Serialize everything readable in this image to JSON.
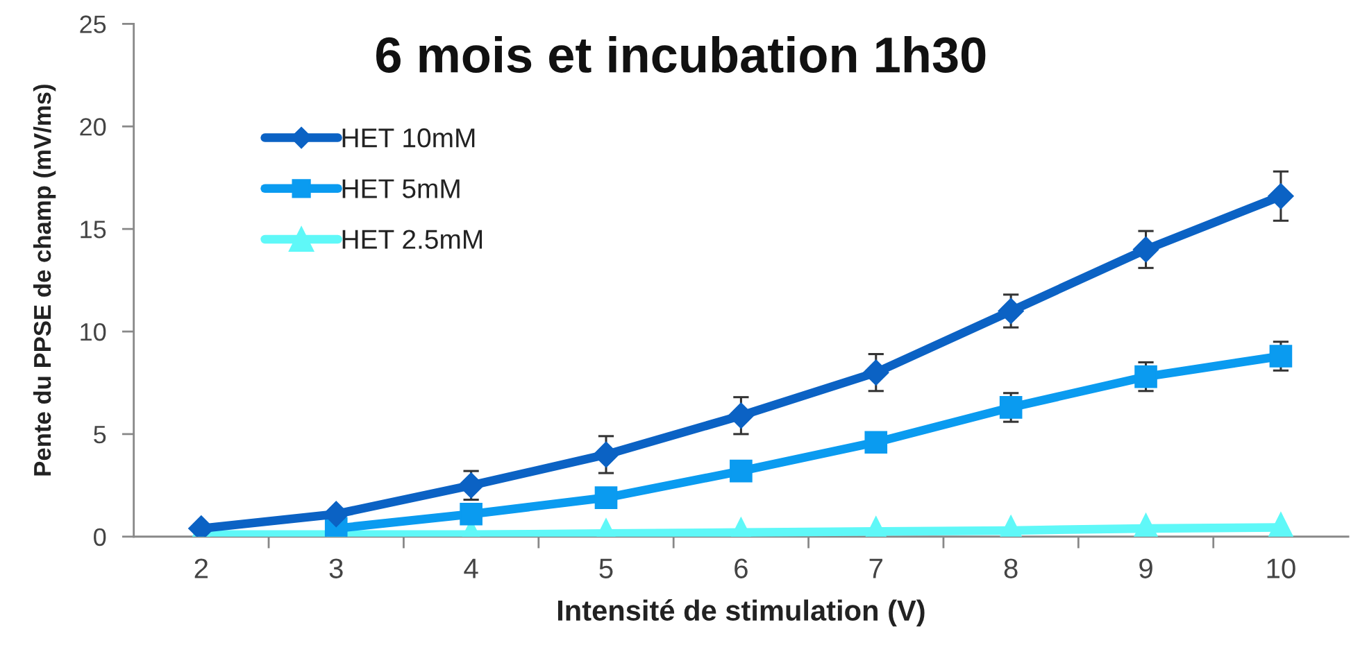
{
  "chart_data": {
    "type": "line",
    "title": "6 mois et incubation 1h30",
    "xlabel": "Intensité de stimulation (V)",
    "ylabel": "Pente du PPSE de champ (mV/ms)",
    "categories": [
      "2",
      "3",
      "4",
      "5",
      "6",
      "7",
      "8",
      "9",
      "10"
    ],
    "series": [
      {
        "name": "HET 10mM",
        "color": "#0b62c4",
        "marker": "diamond",
        "values": [
          0.4,
          1.1,
          2.5,
          4.0,
          5.9,
          8.0,
          11.0,
          14.0,
          16.6
        ],
        "errors": [
          null,
          null,
          0.7,
          0.9,
          0.9,
          0.9,
          0.8,
          0.9,
          1.2
        ]
      },
      {
        "name": "HET 5mM",
        "color": "#0a9bf0",
        "marker": "square",
        "values": [
          null,
          0.4,
          1.1,
          1.9,
          3.2,
          4.6,
          6.3,
          7.8,
          8.8
        ],
        "errors": [
          null,
          null,
          null,
          null,
          null,
          null,
          0.7,
          0.7,
          0.7
        ]
      },
      {
        "name": "HET 2.5mM",
        "color": "#5ff8f8",
        "marker": "triangle",
        "values": [
          0.1,
          0.1,
          0.1,
          0.15,
          0.2,
          0.25,
          0.3,
          0.4,
          0.45
        ]
      }
    ],
    "ylim": [
      0,
      25
    ],
    "yticks": [
      0,
      5,
      10,
      15,
      20,
      25
    ],
    "grid": false,
    "legend": "top left",
    "line_style": "solid"
  }
}
